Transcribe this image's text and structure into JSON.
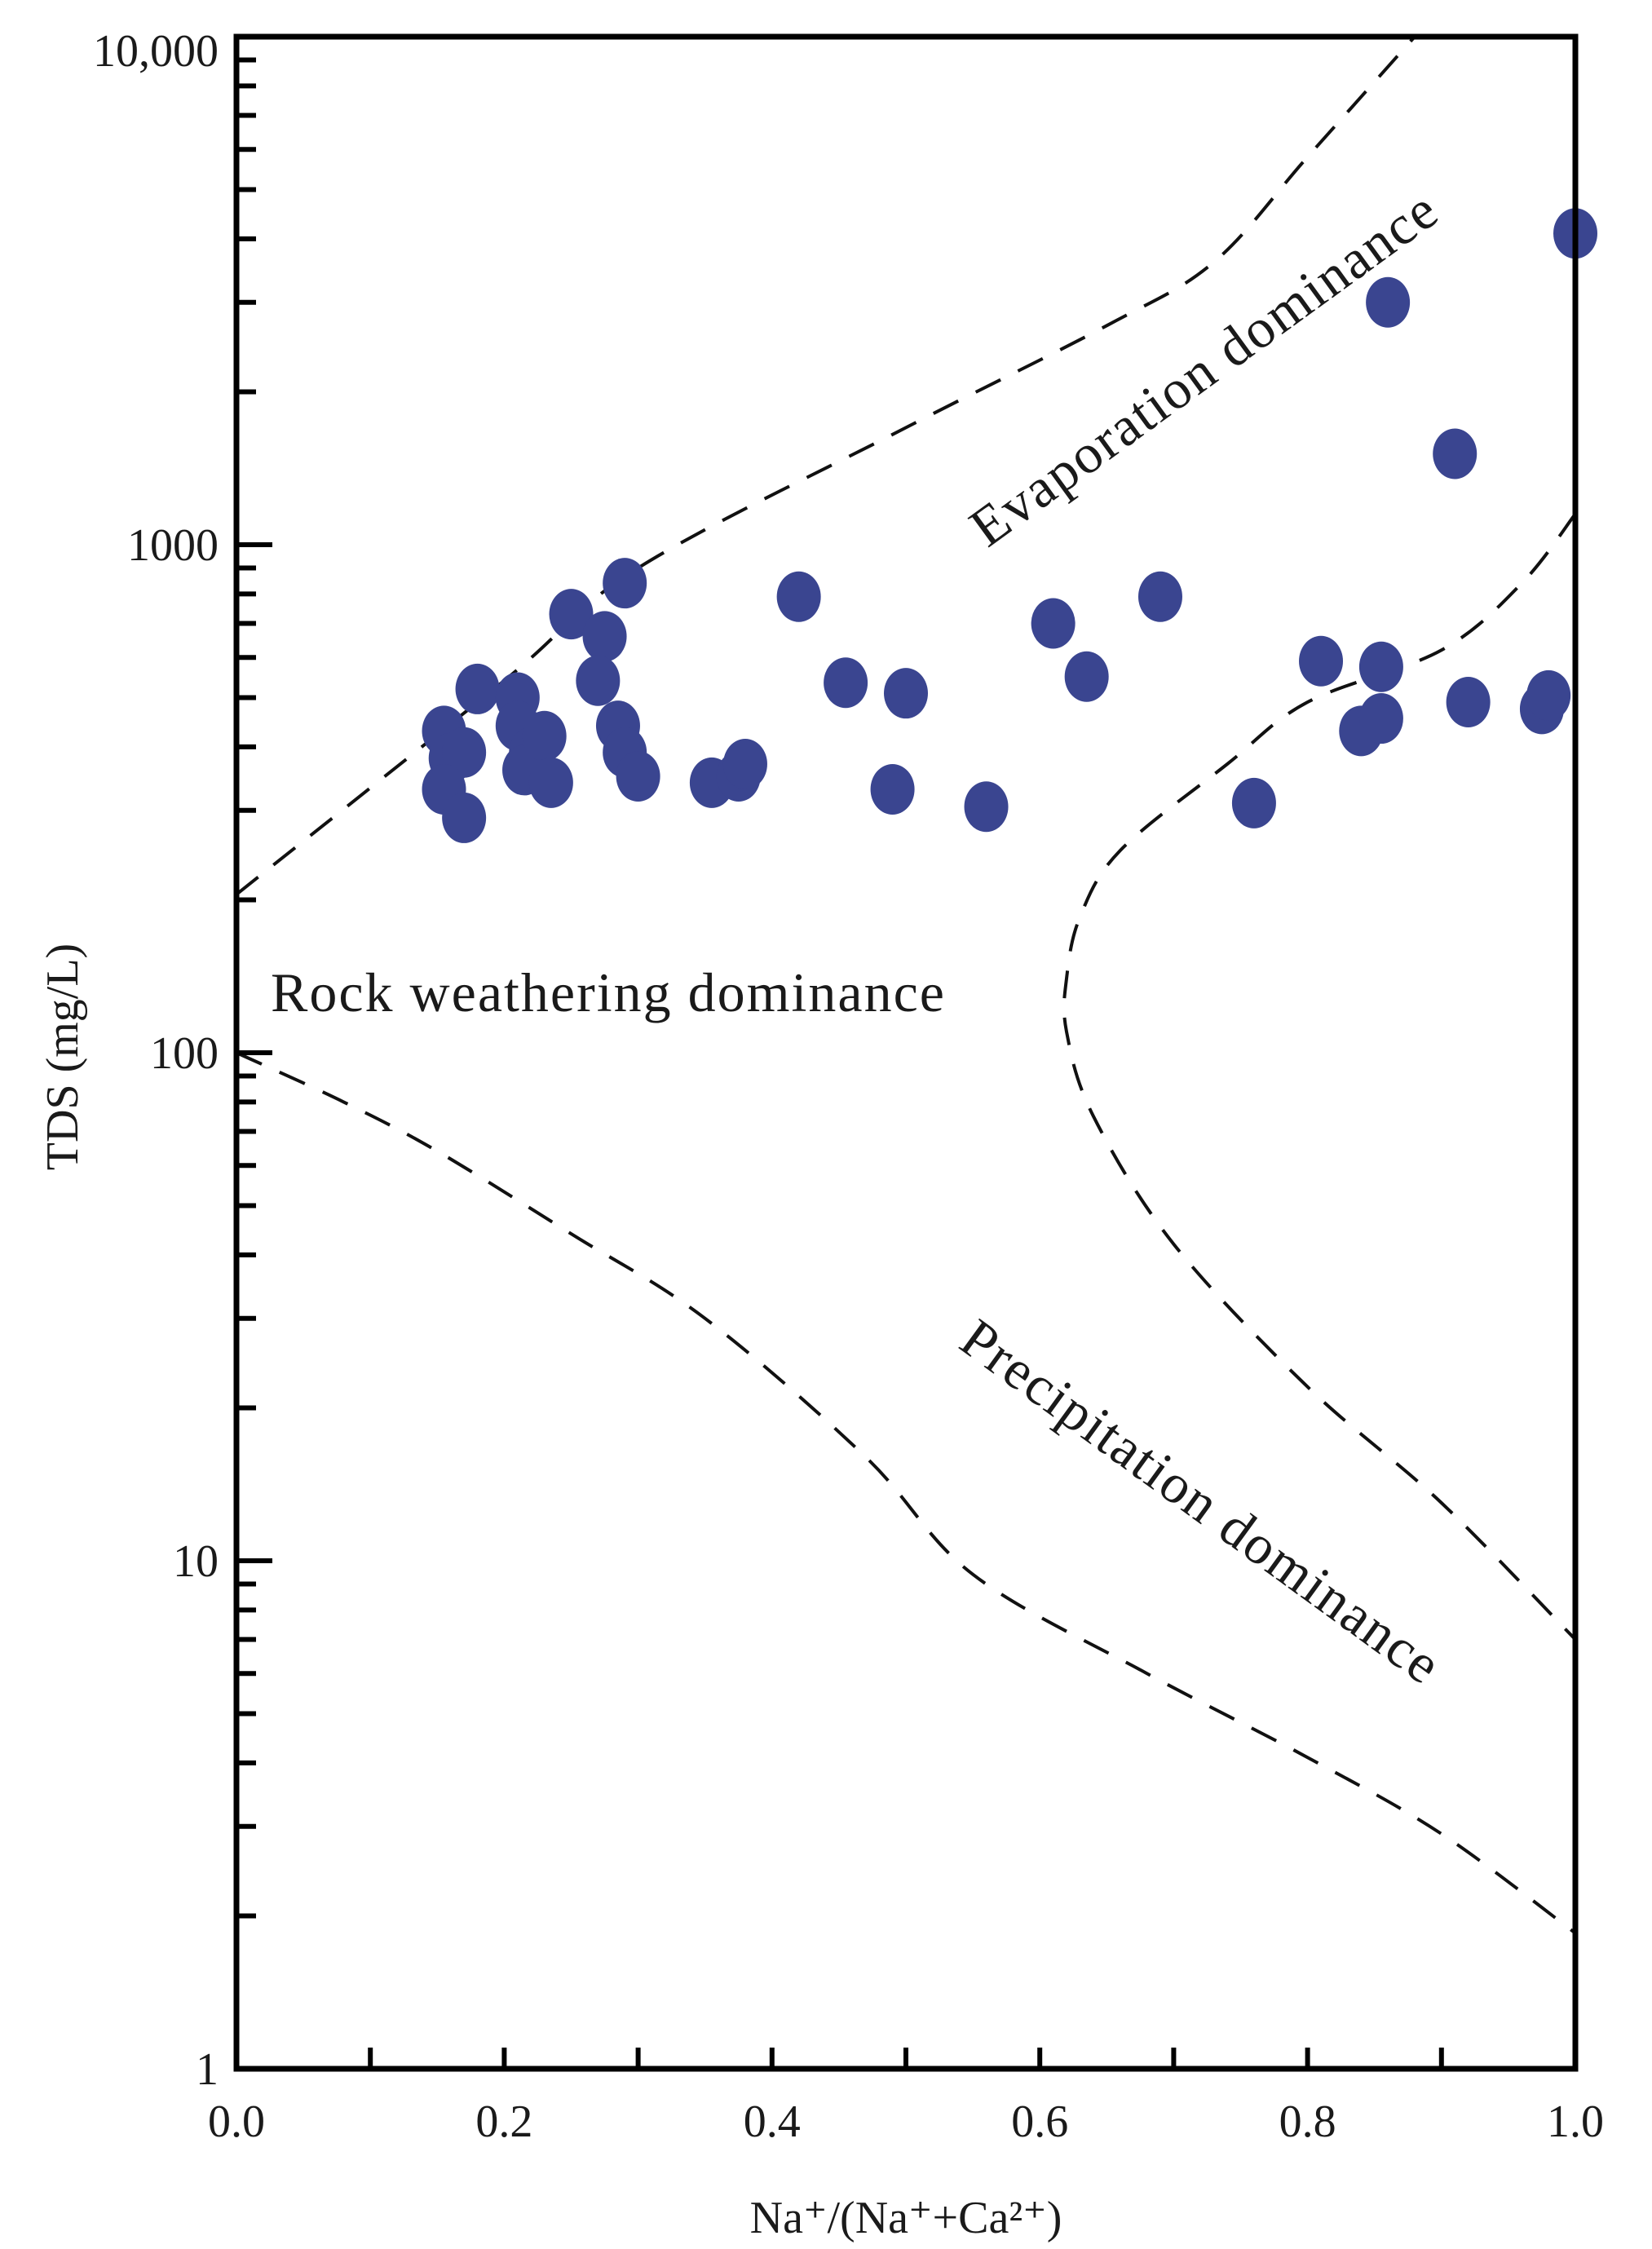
{
  "chart_data": {
    "type": "scatter",
    "title": "",
    "xlabel": "Na⁺/(Na⁺+Ca²⁺)",
    "ylabel": "TDS (mg/L)",
    "xlim": [
      0.0,
      1.0
    ],
    "ylim": [
      1,
      10000
    ],
    "yscale": "log",
    "grid": false,
    "legend": "none",
    "x_ticks": [
      0.0,
      0.1,
      0.2,
      0.3,
      0.4,
      0.5,
      0.6,
      0.7,
      0.8,
      0.9,
      1.0
    ],
    "x_tick_labels": [
      "0.0",
      "0.2",
      "0.4",
      "0.6",
      "0.8",
      "1.0"
    ],
    "x_tick_label_values": [
      0.0,
      0.2,
      0.4,
      0.6,
      0.8,
      1.0
    ],
    "y_tick_labels": [
      "1",
      "10",
      "100",
      "1000",
      "10,000"
    ],
    "y_tick_label_values": [
      1,
      10,
      100,
      1000,
      10000
    ],
    "marker_color": "#3a4590",
    "points": [
      {
        "x": 0.155,
        "y": 430
      },
      {
        "x": 0.16,
        "y": 380
      },
      {
        "x": 0.17,
        "y": 390
      },
      {
        "x": 0.155,
        "y": 330
      },
      {
        "x": 0.17,
        "y": 290
      },
      {
        "x": 0.18,
        "y": 520
      },
      {
        "x": 0.21,
        "y": 500
      },
      {
        "x": 0.21,
        "y": 440
      },
      {
        "x": 0.22,
        "y": 390
      },
      {
        "x": 0.215,
        "y": 360
      },
      {
        "x": 0.23,
        "y": 420
      },
      {
        "x": 0.235,
        "y": 340
      },
      {
        "x": 0.25,
        "y": 730
      },
      {
        "x": 0.275,
        "y": 660
      },
      {
        "x": 0.27,
        "y": 540
      },
      {
        "x": 0.29,
        "y": 840
      },
      {
        "x": 0.285,
        "y": 440
      },
      {
        "x": 0.29,
        "y": 390
      },
      {
        "x": 0.3,
        "y": 350
      },
      {
        "x": 0.355,
        "y": 340
      },
      {
        "x": 0.375,
        "y": 350
      },
      {
        "x": 0.38,
        "y": 370
      },
      {
        "x": 0.42,
        "y": 790
      },
      {
        "x": 0.455,
        "y": 535
      },
      {
        "x": 0.49,
        "y": 330
      },
      {
        "x": 0.5,
        "y": 510
      },
      {
        "x": 0.56,
        "y": 305
      },
      {
        "x": 0.61,
        "y": 700
      },
      {
        "x": 0.635,
        "y": 550
      },
      {
        "x": 0.69,
        "y": 790
      },
      {
        "x": 0.76,
        "y": 310
      },
      {
        "x": 0.81,
        "y": 590
      },
      {
        "x": 0.84,
        "y": 430
      },
      {
        "x": 0.855,
        "y": 575
      },
      {
        "x": 0.855,
        "y": 455
      },
      {
        "x": 0.86,
        "y": 3000
      },
      {
        "x": 0.91,
        "y": 1510
      },
      {
        "x": 0.92,
        "y": 490
      },
      {
        "x": 0.975,
        "y": 475
      },
      {
        "x": 0.98,
        "y": 505
      },
      {
        "x": 1.0,
        "y": 4100
      }
    ],
    "boundaries": [
      {
        "points": [
          [
            0.0,
            205
          ],
          [
            0.2,
            540
          ],
          [
            0.3,
            900
          ],
          [
            0.5,
            1700
          ],
          [
            0.65,
            2700
          ],
          [
            0.73,
            3600
          ],
          [
            0.8,
            5800
          ],
          [
            0.88,
            10000
          ]
        ]
      },
      {
        "points": [
          [
            0.0,
            100
          ],
          [
            0.08,
            80
          ],
          [
            0.15,
            64
          ],
          [
            0.25,
            44
          ],
          [
            0.35,
            30
          ],
          [
            0.47,
            16
          ],
          [
            0.55,
            9.4
          ],
          [
            0.68,
            6
          ],
          [
            0.8,
            4.1
          ],
          [
            0.9,
            2.9
          ],
          [
            1.0,
            1.85
          ]
        ]
      },
      {
        "points": [
          [
            1.0,
            1150
          ],
          [
            0.96,
            840
          ],
          [
            0.9,
            620
          ],
          [
            0.8,
            490
          ],
          [
            0.74,
            370
          ],
          [
            0.66,
            250
          ],
          [
            0.63,
            185
          ],
          [
            0.62,
            140
          ],
          [
            0.62,
            110
          ],
          [
            0.64,
            75
          ],
          [
            0.7,
            42
          ],
          [
            0.8,
            22
          ],
          [
            0.9,
            13
          ],
          [
            1.0,
            7
          ]
        ]
      }
    ],
    "annotations": [
      "Evaporation dominance",
      "Rock weathering dominance",
      "Precipitation dominance"
    ]
  }
}
